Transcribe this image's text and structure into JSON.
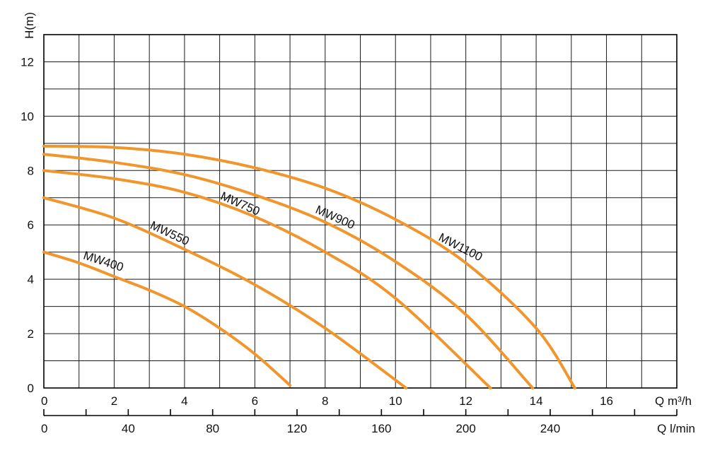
{
  "chart_data": {
    "type": "line",
    "ylabel": "H(m)",
    "xlabel": "Q m³/h",
    "xlabel_secondary": "Q l/min",
    "xlim": [
      0,
      18
    ],
    "ylim": [
      0,
      13
    ],
    "x_ticks": [
      "0",
      "2",
      "4",
      "6",
      "8",
      "10",
      "12",
      "14",
      "16"
    ],
    "y_ticks": [
      "0",
      "2",
      "4",
      "6",
      "8",
      "10",
      "12"
    ],
    "x2_ticks": [
      "0",
      "40",
      "80",
      "120",
      "160",
      "200",
      "240"
    ],
    "x2_scale_lpm_per_m3h": 16.6667,
    "grid": true,
    "curve_color": "#F0962C",
    "series": [
      {
        "name": "MW400",
        "x": [
          0,
          1,
          2,
          3,
          4,
          5,
          6,
          7
        ],
        "y": [
          5.0,
          4.6,
          4.1,
          3.6,
          3.0,
          2.2,
          1.25,
          0.1
        ]
      },
      {
        "name": "MW550",
        "x": [
          0,
          2,
          4,
          6,
          8,
          10.3
        ],
        "y": [
          7.0,
          6.25,
          5.1,
          3.8,
          2.2,
          0.0
        ]
      },
      {
        "name": "MW750",
        "x": [
          0,
          2,
          4,
          6,
          8,
          10,
          12.7
        ],
        "y": [
          8.0,
          7.7,
          7.2,
          6.3,
          5.0,
          3.3,
          0.0
        ]
      },
      {
        "name": "MW900",
        "x": [
          0,
          2,
          4,
          6,
          8,
          10,
          12,
          13.9
        ],
        "y": [
          8.6,
          8.3,
          7.85,
          7.1,
          6.1,
          4.65,
          2.7,
          0.0
        ]
      },
      {
        "name": "MW1100",
        "x": [
          0,
          2,
          4,
          6,
          8,
          10,
          12,
          14,
          15.1
        ],
        "y": [
          8.9,
          8.85,
          8.6,
          8.1,
          7.35,
          6.2,
          4.6,
          2.2,
          0.0
        ]
      }
    ]
  }
}
